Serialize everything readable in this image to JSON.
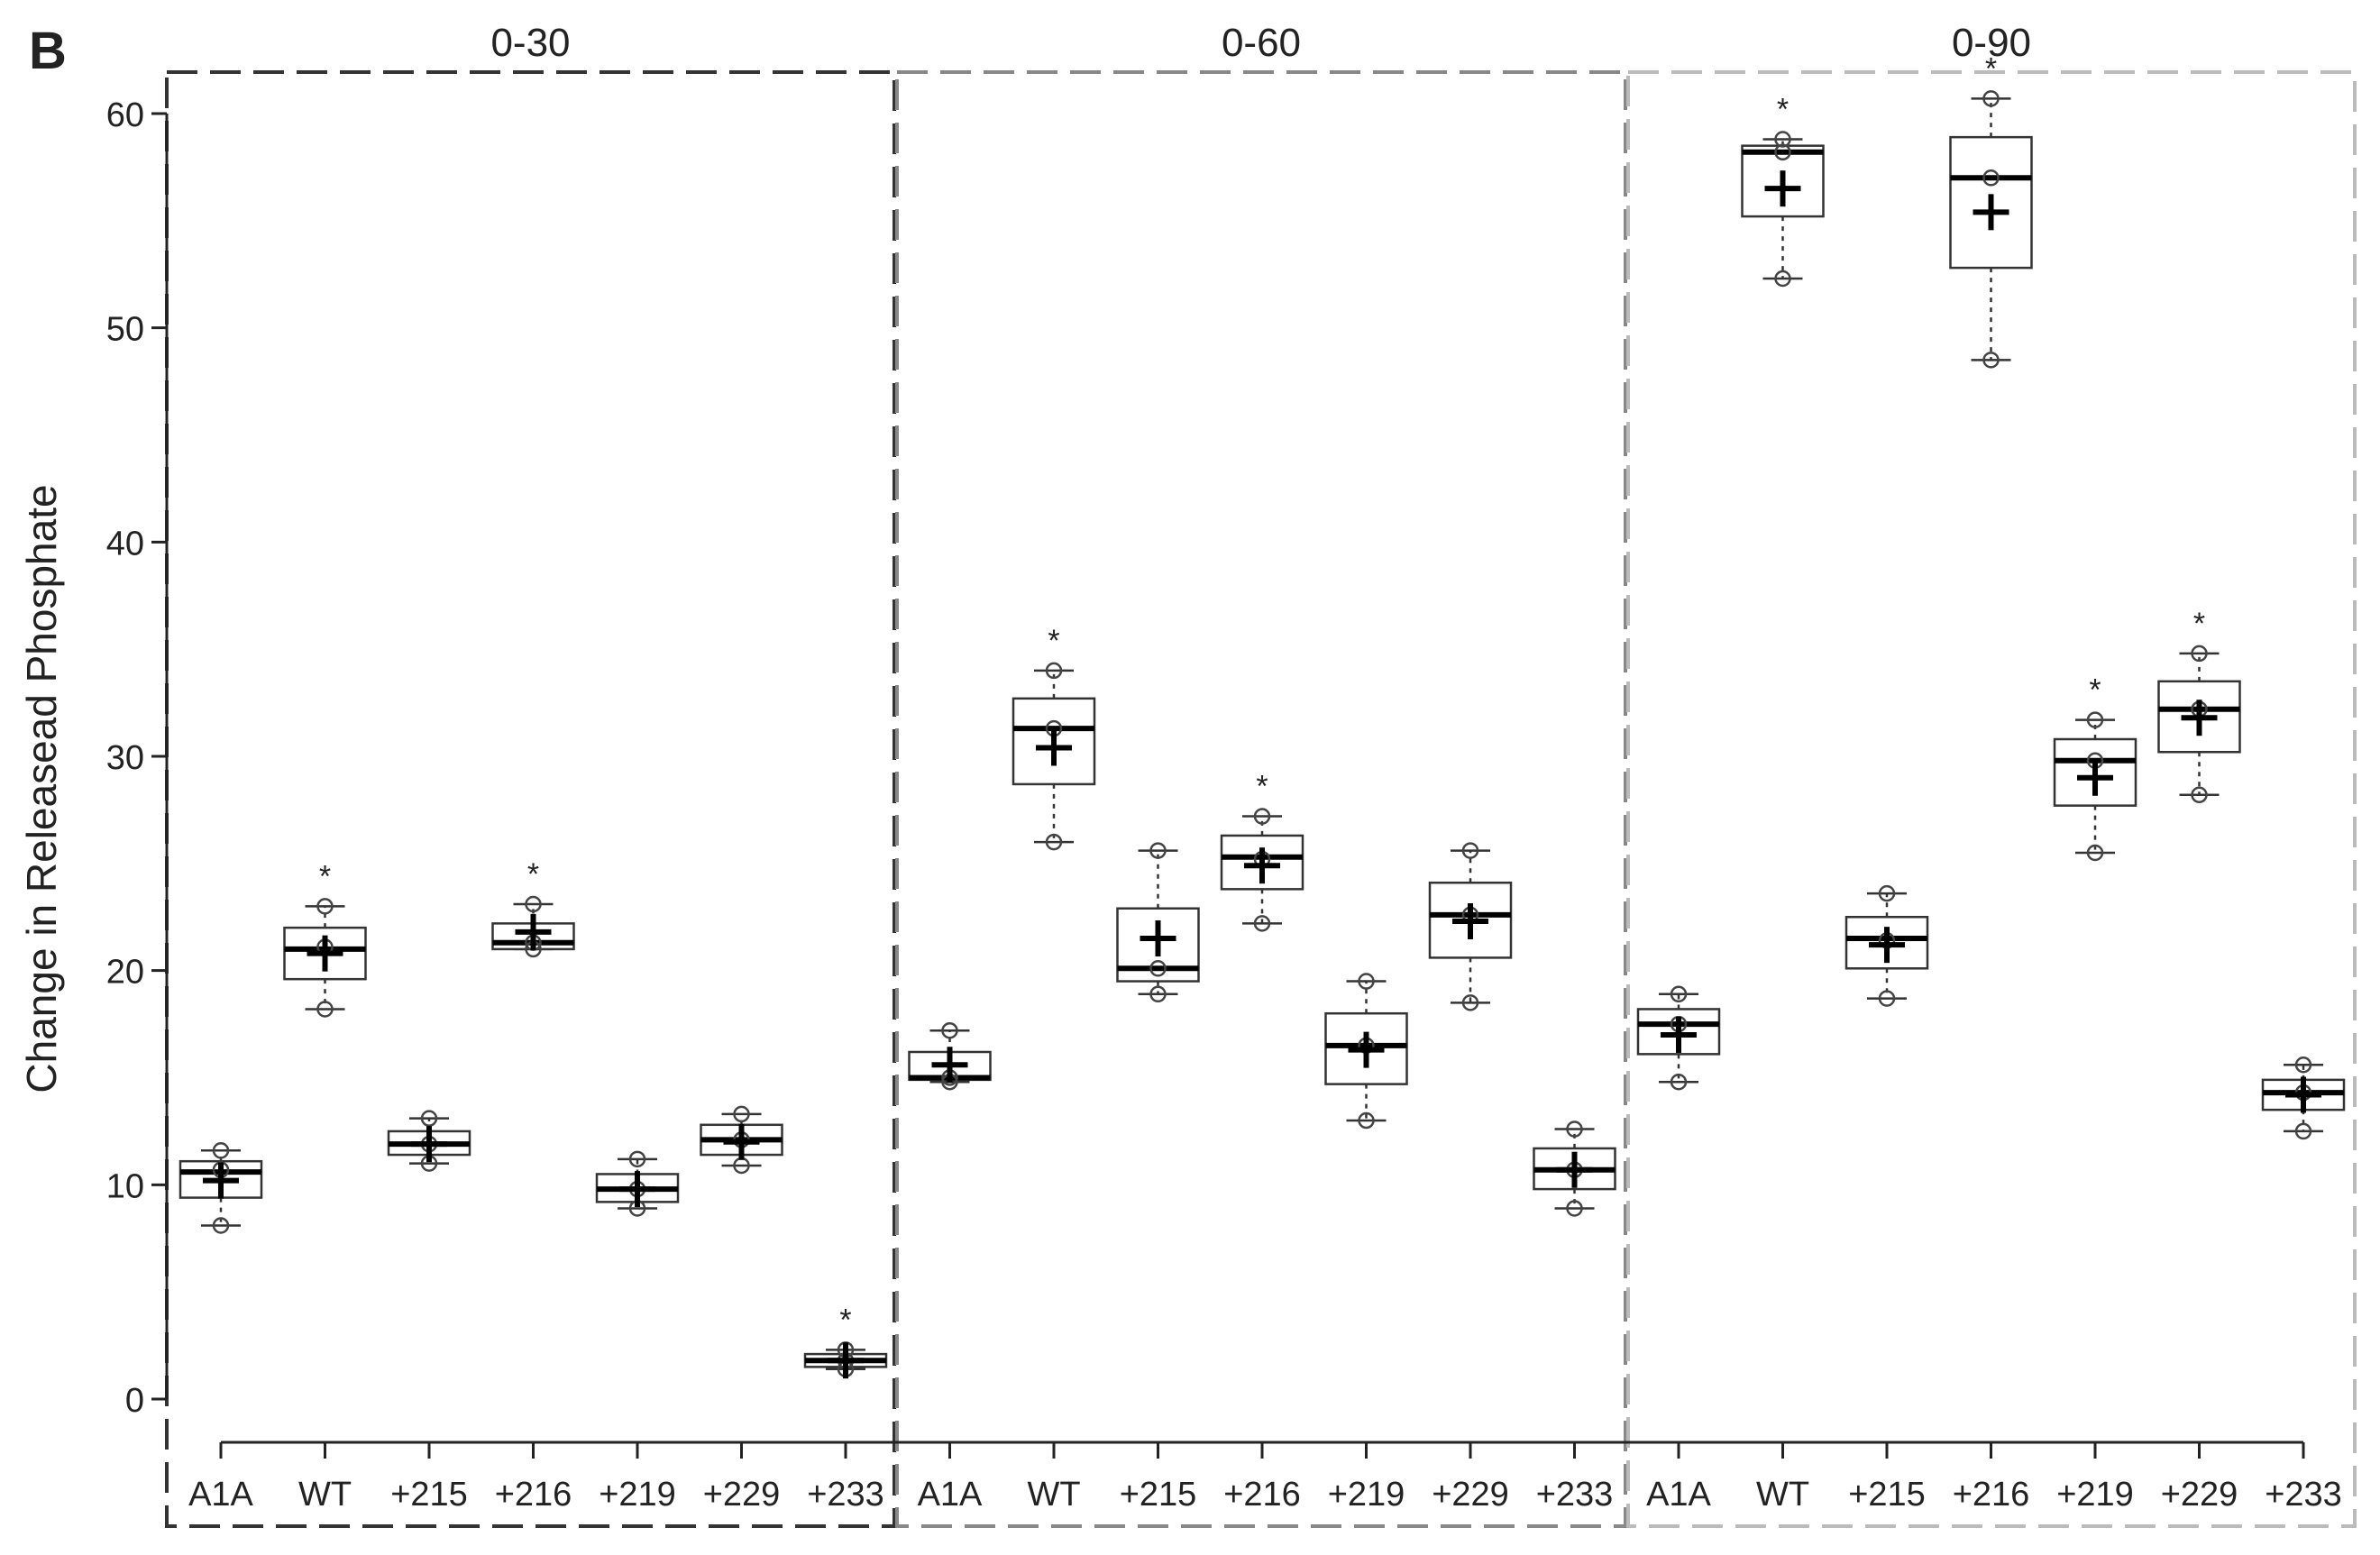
{
  "chart_data": {
    "type": "boxplot",
    "panel_label": "B",
    "ylabel": "Change in Releasead Phosphate",
    "ylim": [
      -2,
      62
    ],
    "yticks": [
      0,
      10,
      20,
      30,
      40,
      50,
      60
    ],
    "categories": [
      "A1A",
      "WT",
      "+215",
      "+216",
      "+219",
      "+229",
      "+233"
    ],
    "panels": [
      {
        "title": "0-30",
        "border_color": "#333333",
        "boxes": [
          {
            "category": "A1A",
            "q1": 9.4,
            "median": 10.6,
            "q3": 11.1,
            "mean": 10.2,
            "points": [
              8.1,
              10.7,
              11.6
            ],
            "significant": false
          },
          {
            "category": "WT",
            "q1": 19.6,
            "median": 21.0,
            "q3": 22.0,
            "mean": 20.8,
            "points": [
              18.2,
              21.1,
              23.0
            ],
            "significant": true
          },
          {
            "category": "+215",
            "q1": 11.4,
            "median": 11.9,
            "q3": 12.5,
            "mean": 11.9,
            "points": [
              11.0,
              11.9,
              13.1
            ],
            "significant": false
          },
          {
            "category": "+216",
            "q1": 21.0,
            "median": 21.3,
            "q3": 22.2,
            "mean": 21.8,
            "points": [
              21.0,
              21.3,
              23.1
            ],
            "significant": true
          },
          {
            "category": "+219",
            "q1": 9.2,
            "median": 9.8,
            "q3": 10.5,
            "mean": 9.8,
            "points": [
              8.9,
              9.8,
              11.2
            ],
            "significant": false
          },
          {
            "category": "+229",
            "q1": 11.4,
            "median": 12.1,
            "q3": 12.8,
            "mean": 12.0,
            "points": [
              10.9,
              12.1,
              13.3
            ],
            "significant": false
          },
          {
            "category": "+233",
            "q1": 1.5,
            "median": 1.8,
            "q3": 2.1,
            "mean": 1.8,
            "points": [
              1.4,
              1.8,
              2.3
            ],
            "significant": true
          }
        ]
      },
      {
        "title": "0-60",
        "border_color": "#888888",
        "boxes": [
          {
            "category": "A1A",
            "q1": 14.9,
            "median": 15.0,
            "q3": 16.2,
            "mean": 15.6,
            "points": [
              14.8,
              15.0,
              17.2
            ],
            "significant": false
          },
          {
            "category": "WT",
            "q1": 28.7,
            "median": 31.3,
            "q3": 32.7,
            "mean": 30.4,
            "points": [
              26.0,
              31.3,
              34.0
            ],
            "significant": true
          },
          {
            "category": "+215",
            "q1": 19.5,
            "median": 20.1,
            "q3": 22.9,
            "mean": 21.5,
            "points": [
              18.9,
              20.1,
              25.6
            ],
            "significant": false
          },
          {
            "category": "+216",
            "q1": 23.8,
            "median": 25.3,
            "q3": 26.3,
            "mean": 24.9,
            "points": [
              22.2,
              25.2,
              27.2
            ],
            "significant": true
          },
          {
            "category": "+219",
            "q1": 14.7,
            "median": 16.5,
            "q3": 18.0,
            "mean": 16.3,
            "points": [
              13.0,
              16.5,
              19.5
            ],
            "significant": false
          },
          {
            "category": "+229",
            "q1": 20.6,
            "median": 22.6,
            "q3": 24.1,
            "mean": 22.3,
            "points": [
              18.5,
              22.6,
              25.6
            ],
            "significant": false
          },
          {
            "category": "+233",
            "q1": 9.8,
            "median": 10.7,
            "q3": 11.7,
            "mean": 10.7,
            "points": [
              8.9,
              10.7,
              12.6
            ],
            "significant": false
          }
        ]
      },
      {
        "title": "0-90",
        "border_color": "#bbbbbb",
        "boxes": [
          {
            "category": "A1A",
            "q1": 16.1,
            "median": 17.5,
            "q3": 18.2,
            "mean": 17.0,
            "points": [
              14.8,
              17.5,
              18.9
            ],
            "significant": false
          },
          {
            "category": "WT",
            "q1": 55.2,
            "median": 58.2,
            "q3": 58.5,
            "mean": 56.5,
            "points": [
              52.3,
              58.2,
              58.8
            ],
            "significant": true
          },
          {
            "category": "+215",
            "q1": 20.1,
            "median": 21.5,
            "q3": 22.5,
            "mean": 21.2,
            "points": [
              18.7,
              21.4,
              23.6
            ],
            "significant": false
          },
          {
            "category": "+216",
            "q1": 52.8,
            "median": 57.0,
            "q3": 58.9,
            "mean": 55.4,
            "points": [
              48.5,
              57.0,
              60.7
            ],
            "significant": true
          },
          {
            "category": "+219",
            "q1": 27.7,
            "median": 29.8,
            "q3": 30.8,
            "mean": 29.0,
            "points": [
              25.5,
              29.8,
              31.7
            ],
            "significant": true
          },
          {
            "category": "+229",
            "q1": 30.2,
            "median": 32.2,
            "q3": 33.5,
            "mean": 31.8,
            "points": [
              28.2,
              32.2,
              34.8
            ],
            "significant": true
          },
          {
            "category": "+233",
            "q1": 13.5,
            "median": 14.3,
            "q3": 14.9,
            "mean": 14.2,
            "points": [
              12.5,
              14.3,
              15.6
            ],
            "significant": false
          }
        ]
      }
    ]
  }
}
